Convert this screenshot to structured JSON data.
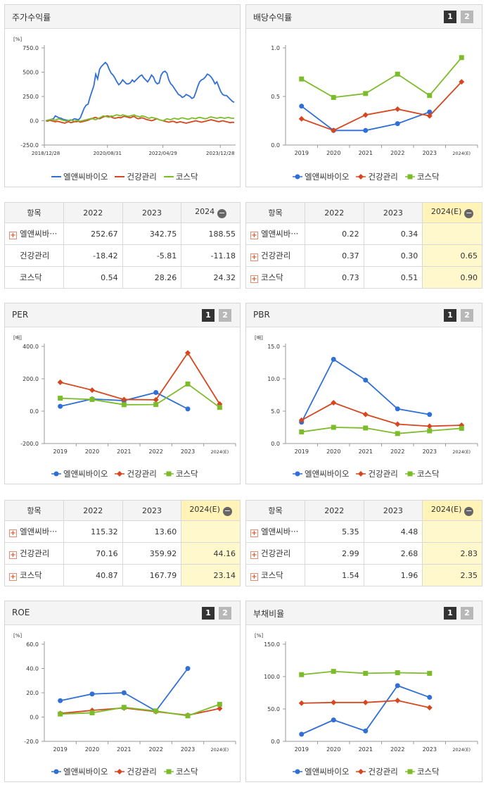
{
  "colors": {
    "s1": "#2f6fd6",
    "s2": "#d6461f",
    "s3": "#7cbc2a"
  },
  "legend": [
    "엘앤씨바이오",
    "건강관리",
    "코스닥"
  ],
  "panels": {
    "stock": {
      "title": "주가수익률",
      "unit": "[%]"
    },
    "dividend": {
      "title": "배당수익률",
      "unit": ""
    },
    "per": {
      "title": "PER",
      "unit": "[배]"
    },
    "pbr": {
      "title": "PBR",
      "unit": "[배]"
    },
    "roe": {
      "title": "ROE",
      "unit": "[%]"
    },
    "debt": {
      "title": "부채비율",
      "unit": "[%]"
    }
  },
  "pager": {
    "p1": "1",
    "p2": "2"
  },
  "tables": {
    "stock": {
      "headers": [
        "항목",
        "2022",
        "2023",
        "2024"
      ],
      "rows": [
        {
          "name": "엘앤씨바···",
          "v": [
            "252.67",
            "342.75",
            "188.55"
          ],
          "plus": true
        },
        {
          "name": "건강관리",
          "v": [
            "-18.42",
            "-5.81",
            "-11.18"
          ],
          "plus": false
        },
        {
          "name": "코스닥",
          "v": [
            "0.54",
            "28.26",
            "24.32"
          ],
          "plus": false
        }
      ]
    },
    "dividend": {
      "headers": [
        "항목",
        "2022",
        "2023",
        "2024(E)"
      ],
      "rows": [
        {
          "name": "엘앤씨바···",
          "v": [
            "0.22",
            "0.34",
            ""
          ],
          "plus": true
        },
        {
          "name": "건강관리",
          "v": [
            "0.37",
            "0.30",
            "0.65"
          ],
          "plus": true
        },
        {
          "name": "코스닥",
          "v": [
            "0.73",
            "0.51",
            "0.90"
          ],
          "plus": true
        }
      ]
    },
    "per": {
      "headers": [
        "항목",
        "2022",
        "2023",
        "2024(E)"
      ],
      "rows": [
        {
          "name": "엘앤씨바···",
          "v": [
            "115.32",
            "13.60",
            ""
          ],
          "plus": true
        },
        {
          "name": "건강관리",
          "v": [
            "70.16",
            "359.92",
            "44.16"
          ],
          "plus": true
        },
        {
          "name": "코스닥",
          "v": [
            "40.87",
            "167.79",
            "23.14"
          ],
          "plus": true
        }
      ]
    },
    "pbr": {
      "headers": [
        "항목",
        "2022",
        "2023",
        "2024(E)"
      ],
      "rows": [
        {
          "name": "엘앤씨바···",
          "v": [
            "5.35",
            "4.48",
            ""
          ],
          "plus": true
        },
        {
          "name": "건강관리",
          "v": [
            "2.99",
            "2.68",
            "2.83"
          ],
          "plus": true
        },
        {
          "name": "코스닥",
          "v": [
            "1.54",
            "1.96",
            "2.35"
          ],
          "plus": true
        }
      ]
    }
  },
  "chart_data": [
    {
      "id": "stock",
      "type": "line",
      "title": "주가수익률",
      "x_ticks": [
        "2018/12/28",
        "2020/08/31",
        "2022/04/29",
        "2023/12/28"
      ],
      "ylim": [
        -250,
        750
      ],
      "yticks": [
        "-250.0",
        "0.0",
        "250.0",
        "500.0",
        "750.0"
      ],
      "series": [
        {
          "name": "엘앤씨바이오",
          "values": [
            0,
            5,
            10,
            15,
            20,
            50,
            40,
            30,
            25,
            15,
            10,
            5,
            0,
            5,
            10,
            20,
            15,
            10,
            30,
            80,
            130,
            160,
            170,
            240,
            300,
            360,
            480,
            430,
            530,
            560,
            580,
            600,
            580,
            530,
            490,
            470,
            440,
            400,
            370,
            390,
            420,
            400,
            380,
            380,
            390,
            420,
            400,
            420,
            440,
            460,
            470,
            440,
            420,
            400,
            430,
            470,
            450,
            400,
            380,
            390,
            470,
            500,
            510,
            490,
            420,
            380,
            360,
            330,
            300,
            270,
            260,
            240,
            250,
            270,
            260,
            250,
            230,
            240,
            290,
            350,
            400,
            420,
            430,
            450,
            480,
            470,
            450,
            420,
            380,
            400,
            350,
            300,
            270,
            260,
            260,
            240,
            220,
            200,
            190
          ]
        },
        {
          "name": "건강관리",
          "values": [
            0,
            -5,
            5,
            0,
            -5,
            -10,
            -5,
            -10,
            -15,
            -20,
            -25,
            -15,
            -10,
            -20,
            -15,
            -10,
            -10,
            -5,
            -15,
            -10,
            -5,
            0,
            5,
            15,
            20,
            30,
            35,
            25,
            20,
            30,
            40,
            45,
            50,
            45,
            40,
            30,
            25,
            30,
            35,
            30,
            40,
            45,
            40,
            35,
            30,
            40,
            45,
            30,
            20,
            25,
            30,
            25,
            15,
            10,
            5,
            0,
            5,
            15,
            20,
            10,
            5,
            0,
            -5,
            -10,
            -15,
            -10,
            -5,
            -10,
            -20,
            -15,
            -10,
            -15,
            -20,
            -25,
            -20,
            -15,
            -10,
            -5,
            0,
            -5,
            -10,
            -15,
            -10,
            -5,
            0,
            5,
            10,
            5,
            0,
            -5,
            -10,
            -5,
            0,
            -5,
            -10,
            -15,
            -20,
            -15,
            -18
          ]
        },
        {
          "name": "코스닥",
          "values": [
            0,
            5,
            10,
            15,
            10,
            5,
            15,
            20,
            10,
            5,
            0,
            -5,
            5,
            10,
            0,
            -5,
            5,
            0,
            -5,
            0,
            5,
            10,
            15,
            20,
            25,
            15,
            10,
            20,
            30,
            40,
            50,
            45,
            40,
            35,
            50,
            45,
            55,
            60,
            55,
            50,
            60,
            55,
            50,
            45,
            50,
            55,
            60,
            50,
            45,
            40,
            50,
            45,
            40,
            30,
            25,
            35,
            30,
            25,
            20,
            10,
            5,
            0,
            10,
            20,
            15,
            10,
            20,
            25,
            20,
            15,
            25,
            30,
            25,
            20,
            15,
            20,
            30,
            25,
            20,
            30,
            35,
            30,
            25,
            20,
            25,
            35,
            40,
            35,
            30,
            25,
            30,
            35,
            30,
            25,
            30,
            35,
            28,
            25,
            26
          ]
        }
      ]
    },
    {
      "id": "dividend",
      "type": "line",
      "title": "배당수익률",
      "categories": [
        "2019",
        "2020",
        "2021",
        "2022",
        "2023",
        "2024(E)"
      ],
      "ylim": [
        0,
        1
      ],
      "yticks": [
        "0.0",
        "0.5",
        "1.0"
      ],
      "series": [
        {
          "name": "엘앤씨바이오",
          "values": [
            0.4,
            0.15,
            0.15,
            0.22,
            0.34,
            null
          ]
        },
        {
          "name": "건강관리",
          "values": [
            0.27,
            0.15,
            0.31,
            0.37,
            0.3,
            0.65
          ]
        },
        {
          "name": "코스닥",
          "values": [
            0.68,
            0.49,
            0.53,
            0.73,
            0.51,
            0.9
          ]
        }
      ]
    },
    {
      "id": "per",
      "type": "line",
      "title": "PER",
      "categories": [
        "2019",
        "2020",
        "2021",
        "2022",
        "2023",
        "2024(E)"
      ],
      "ylim": [
        -200,
        400
      ],
      "yticks": [
        "-200.0",
        "0.0",
        "200.0",
        "400.0"
      ],
      "series": [
        {
          "name": "엘앤씨바이오",
          "values": [
            30,
            75,
            65,
            115.32,
            13.6,
            null
          ]
        },
        {
          "name": "건강관리",
          "values": [
            178,
            130,
            72,
            70.16,
            359.92,
            44.16
          ]
        },
        {
          "name": "코스닥",
          "values": [
            80,
            72,
            40,
            40.87,
            167.79,
            23.14
          ]
        }
      ]
    },
    {
      "id": "pbr",
      "type": "line",
      "title": "PBR",
      "categories": [
        "2019",
        "2020",
        "2021",
        "2022",
        "2023",
        "2024(E)"
      ],
      "ylim": [
        0,
        15
      ],
      "yticks": [
        "0.0",
        "5.0",
        "10.0",
        "15.0"
      ],
      "series": [
        {
          "name": "엘앤씨바이오",
          "values": [
            3.3,
            13.0,
            9.8,
            5.35,
            4.48,
            null
          ]
        },
        {
          "name": "건강관리",
          "values": [
            3.6,
            6.3,
            4.5,
            2.99,
            2.68,
            2.83
          ]
        },
        {
          "name": "코스닥",
          "values": [
            1.8,
            2.5,
            2.4,
            1.54,
            1.96,
            2.35
          ]
        }
      ]
    },
    {
      "id": "roe",
      "type": "line",
      "title": "ROE",
      "categories": [
        "2019",
        "2020",
        "2021",
        "2022",
        "2023",
        "2024(E)"
      ],
      "ylim": [
        -20,
        60
      ],
      "yticks": [
        "-20.0",
        "0.0",
        "20.0",
        "40.0",
        "60.0"
      ],
      "series": [
        {
          "name": "엘앤씨바이오",
          "values": [
            13.5,
            19,
            20,
            5,
            40,
            null
          ]
        },
        {
          "name": "건강관리",
          "values": [
            3,
            5.5,
            7.5,
            4.5,
            1.5,
            7
          ]
        },
        {
          "name": "코스닥",
          "values": [
            2.5,
            3.5,
            8,
            5,
            1,
            10.5
          ]
        }
      ]
    },
    {
      "id": "debt",
      "type": "line",
      "title": "부채비율",
      "categories": [
        "2019",
        "2020",
        "2021",
        "2022",
        "2023",
        "2024(E)"
      ],
      "ylim": [
        0,
        150
      ],
      "yticks": [
        "0.0",
        "50.0",
        "100.0",
        "150.0"
      ],
      "series": [
        {
          "name": "엘앤씨바이오",
          "values": [
            11,
            33,
            16,
            86,
            68,
            null
          ]
        },
        {
          "name": "건강관리",
          "values": [
            59,
            60,
            60,
            63,
            52,
            null
          ]
        },
        {
          "name": "코스닥",
          "values": [
            103,
            108,
            105,
            106,
            105,
            null
          ]
        }
      ]
    }
  ]
}
